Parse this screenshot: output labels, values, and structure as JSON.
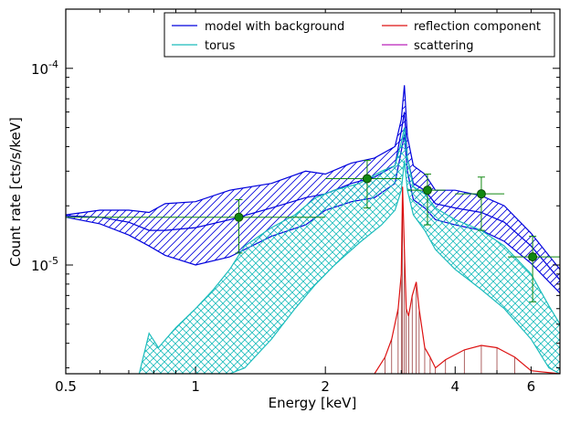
{
  "chart_data": {
    "type": "line",
    "xlabel": "Energy [keV]",
    "ylabel": "Count rate [cts/s/keV]",
    "x_scale": "log",
    "y_scale": "log",
    "xlim": [
      0.5,
      7.0
    ],
    "ylim": [
      2.8e-06,
      0.0002
    ],
    "x_ticks": [
      {
        "value": 0.5,
        "label": "0.5"
      },
      {
        "value": 1,
        "label": "1"
      },
      {
        "value": 2,
        "label": "2"
      },
      {
        "value": 4,
        "label": "4"
      },
      {
        "value": 6,
        "label": "6"
      }
    ],
    "y_ticks": [
      {
        "value": 1e-05,
        "label_base": "10",
        "label_exp": "-5"
      },
      {
        "value": 0.0001,
        "label_base": "10",
        "label_exp": "-4"
      }
    ],
    "legend": {
      "placement": "top-right",
      "entries": [
        {
          "label": "model with background",
          "color": "#0000dd"
        },
        {
          "label": "torus",
          "color": "#1bbcbc"
        },
        {
          "label": "reflection component",
          "color": "#dd1111"
        },
        {
          "label": "scattering",
          "color": "#bb22bb"
        }
      ]
    },
    "data_points": {
      "color": "#118811",
      "x": [
        1.26,
        2.5,
        3.45,
        4.6,
        6.05
      ],
      "xerr_low": [
        0.76,
        0.5,
        0.35,
        0.6,
        0.75
      ],
      "xerr_high": [
        0.74,
        0.5,
        0.35,
        0.6,
        0.95
      ],
      "y": [
        1.75e-05,
        2.75e-05,
        2.4e-05,
        2.3e-05,
        1.1e-05
      ],
      "yerr_low": [
        6e-06,
        8e-06,
        8e-06,
        8e-06,
        4.5e-06
      ],
      "yerr_high": [
        4e-06,
        6.5e-06,
        5e-06,
        5e-06,
        3e-06
      ]
    },
    "series": [
      {
        "name": "model with background",
        "color": "#0000dd",
        "hatch": "diagonal",
        "x": [
          0.5,
          0.6,
          0.7,
          0.78,
          0.85,
          1.0,
          1.2,
          1.5,
          1.8,
          2.0,
          2.3,
          2.6,
          2.9,
          3.0,
          3.05,
          3.1,
          3.2,
          3.4,
          3.6,
          4.0,
          4.6,
          5.2,
          6.0,
          7.0
        ],
        "upper": [
          1.8e-05,
          1.9e-05,
          1.9e-05,
          1.85e-05,
          2.05e-05,
          2.1e-05,
          2.4e-05,
          2.6e-05,
          3e-05,
          2.9e-05,
          3.3e-05,
          3.5e-05,
          4e-05,
          5.5e-05,
          8.2e-05,
          4.5e-05,
          3.2e-05,
          2.9e-05,
          2.4e-05,
          2.4e-05,
          2.25e-05,
          2e-05,
          1.45e-05,
          9.5e-06
        ],
        "mid": [
          1.78e-05,
          1.75e-05,
          1.65e-05,
          1.5e-05,
          1.5e-05,
          1.55e-05,
          1.7e-05,
          1.95e-05,
          2.2e-05,
          2.3e-05,
          2.6e-05,
          2.8e-05,
          3.2e-05,
          4.8e-05,
          6e-05,
          3.5e-05,
          2.6e-05,
          2.4e-05,
          2.05e-05,
          1.95e-05,
          1.85e-05,
          1.65e-05,
          1.25e-05,
          8.4e-06
        ],
        "lower": [
          1.75e-05,
          1.62e-05,
          1.42e-05,
          1.25e-05,
          1.12e-05,
          1e-05,
          1.1e-05,
          1.4e-05,
          1.6e-05,
          1.9e-05,
          2.1e-05,
          2.2e-05,
          2.6e-05,
          3.8e-05,
          4.6e-05,
          3e-05,
          2.15e-05,
          1.95e-05,
          1.7e-05,
          1.6e-05,
          1.5e-05,
          1.32e-05,
          1.02e-05,
          7.2e-06
        ]
      },
      {
        "name": "torus",
        "color": "#1bbcbc",
        "hatch": "cross",
        "x": [
          0.74,
          0.78,
          0.82,
          0.9,
          1.0,
          1.1,
          1.2,
          1.3,
          1.5,
          1.7,
          1.9,
          2.1,
          2.4,
          2.7,
          2.9,
          3.0,
          3.05,
          3.1,
          3.2,
          3.4,
          3.6,
          4.0,
          4.6,
          5.2,
          6.0,
          6.6,
          7.0
        ],
        "upper": [
          2.8e-06,
          4.5e-06,
          3.8e-06,
          4.8e-06,
          6e-06,
          7.5e-06,
          9.5e-06,
          1.25e-05,
          1.55e-05,
          1.8e-05,
          2.2e-05,
          2.4e-05,
          2.6e-05,
          3e-05,
          3.2e-05,
          4.2e-05,
          5e-05,
          3.5e-05,
          2.5e-05,
          2.3e-05,
          1.95e-05,
          1.7e-05,
          1.5e-05,
          1.25e-05,
          9e-06,
          6.2e-06,
          5e-06
        ],
        "lower": [
          2.8e-06,
          2.8e-06,
          2.8e-06,
          2.8e-06,
          2.8e-06,
          2.8e-06,
          2.8e-06,
          3e-06,
          4.2e-06,
          6e-06,
          8e-06,
          1e-05,
          1.3e-05,
          1.6e-05,
          1.9e-05,
          2.4e-05,
          3.4e-05,
          2.4e-05,
          1.8e-05,
          1.5e-05,
          1.2e-05,
          9.5e-06,
          7.5e-06,
          6e-06,
          4.2e-06,
          3e-06,
          2.8e-06
        ]
      },
      {
        "name": "reflection component",
        "color": "#dd1111",
        "x": [
          2.6,
          2.75,
          2.85,
          2.95,
          3.0,
          3.02,
          3.05,
          3.08,
          3.12,
          3.18,
          3.25,
          3.3,
          3.4,
          3.5,
          3.6,
          3.8,
          4.2,
          4.6,
          5.0,
          5.5,
          6.0,
          7.0
        ],
        "y": [
          2.8e-06,
          3.4e-06,
          4.2e-06,
          6e-06,
          9e-06,
          2.5e-05,
          1.2e-05,
          6e-06,
          5.5e-06,
          7e-06,
          8.2e-06,
          6e-06,
          3.8e-06,
          3.4e-06,
          3e-06,
          3.3e-06,
          3.7e-06,
          3.9e-06,
          3.8e-06,
          3.4e-06,
          2.9e-06,
          2.8e-06
        ]
      },
      {
        "name": "scattering",
        "color": "#bb22bb",
        "x": [],
        "y": []
      }
    ]
  }
}
